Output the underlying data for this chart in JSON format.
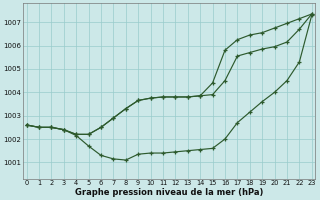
{
  "bg_color": "#cce8e8",
  "grid_color": "#99cccc",
  "line_color": "#2d5a2d",
  "xlabel": "Graphe pression niveau de la mer (hPa)",
  "x": [
    0,
    1,
    2,
    3,
    4,
    5,
    6,
    7,
    8,
    9,
    10,
    11,
    12,
    13,
    14,
    15,
    16,
    17,
    18,
    19,
    20,
    21,
    22,
    23
  ],
  "line1": [
    1002.6,
    1002.5,
    1002.5,
    1002.4,
    1002.15,
    1001.7,
    1001.3,
    1001.15,
    1001.1,
    1001.35,
    1001.4,
    1001.4,
    1001.45,
    1001.5,
    1001.55,
    1001.6,
    1002.0,
    1002.7,
    1003.15,
    1003.6,
    1004.0,
    1004.5,
    1005.3,
    1007.3
  ],
  "line2": [
    1002.6,
    1002.5,
    1002.5,
    1002.4,
    1002.2,
    1002.2,
    1002.5,
    1002.9,
    1003.3,
    1003.65,
    1003.75,
    1003.8,
    1003.8,
    1003.8,
    1003.85,
    1003.9,
    1004.5,
    1005.55,
    1005.7,
    1005.85,
    1005.95,
    1006.15,
    1006.7,
    1007.35
  ],
  "line3": [
    1002.6,
    1002.5,
    1002.5,
    1002.4,
    1002.2,
    1002.2,
    1002.5,
    1002.9,
    1003.3,
    1003.65,
    1003.75,
    1003.8,
    1003.8,
    1003.8,
    1003.85,
    1004.4,
    1005.8,
    1006.25,
    1006.45,
    1006.55,
    1006.75,
    1006.95,
    1007.15,
    1007.35
  ],
  "ylim": [
    1000.3,
    1007.8
  ],
  "yticks": [
    1001,
    1002,
    1003,
    1004,
    1005,
    1006,
    1007
  ],
  "xlim": [
    -0.3,
    23.3
  ],
  "figsize": [
    3.2,
    2.0
  ],
  "dpi": 100
}
